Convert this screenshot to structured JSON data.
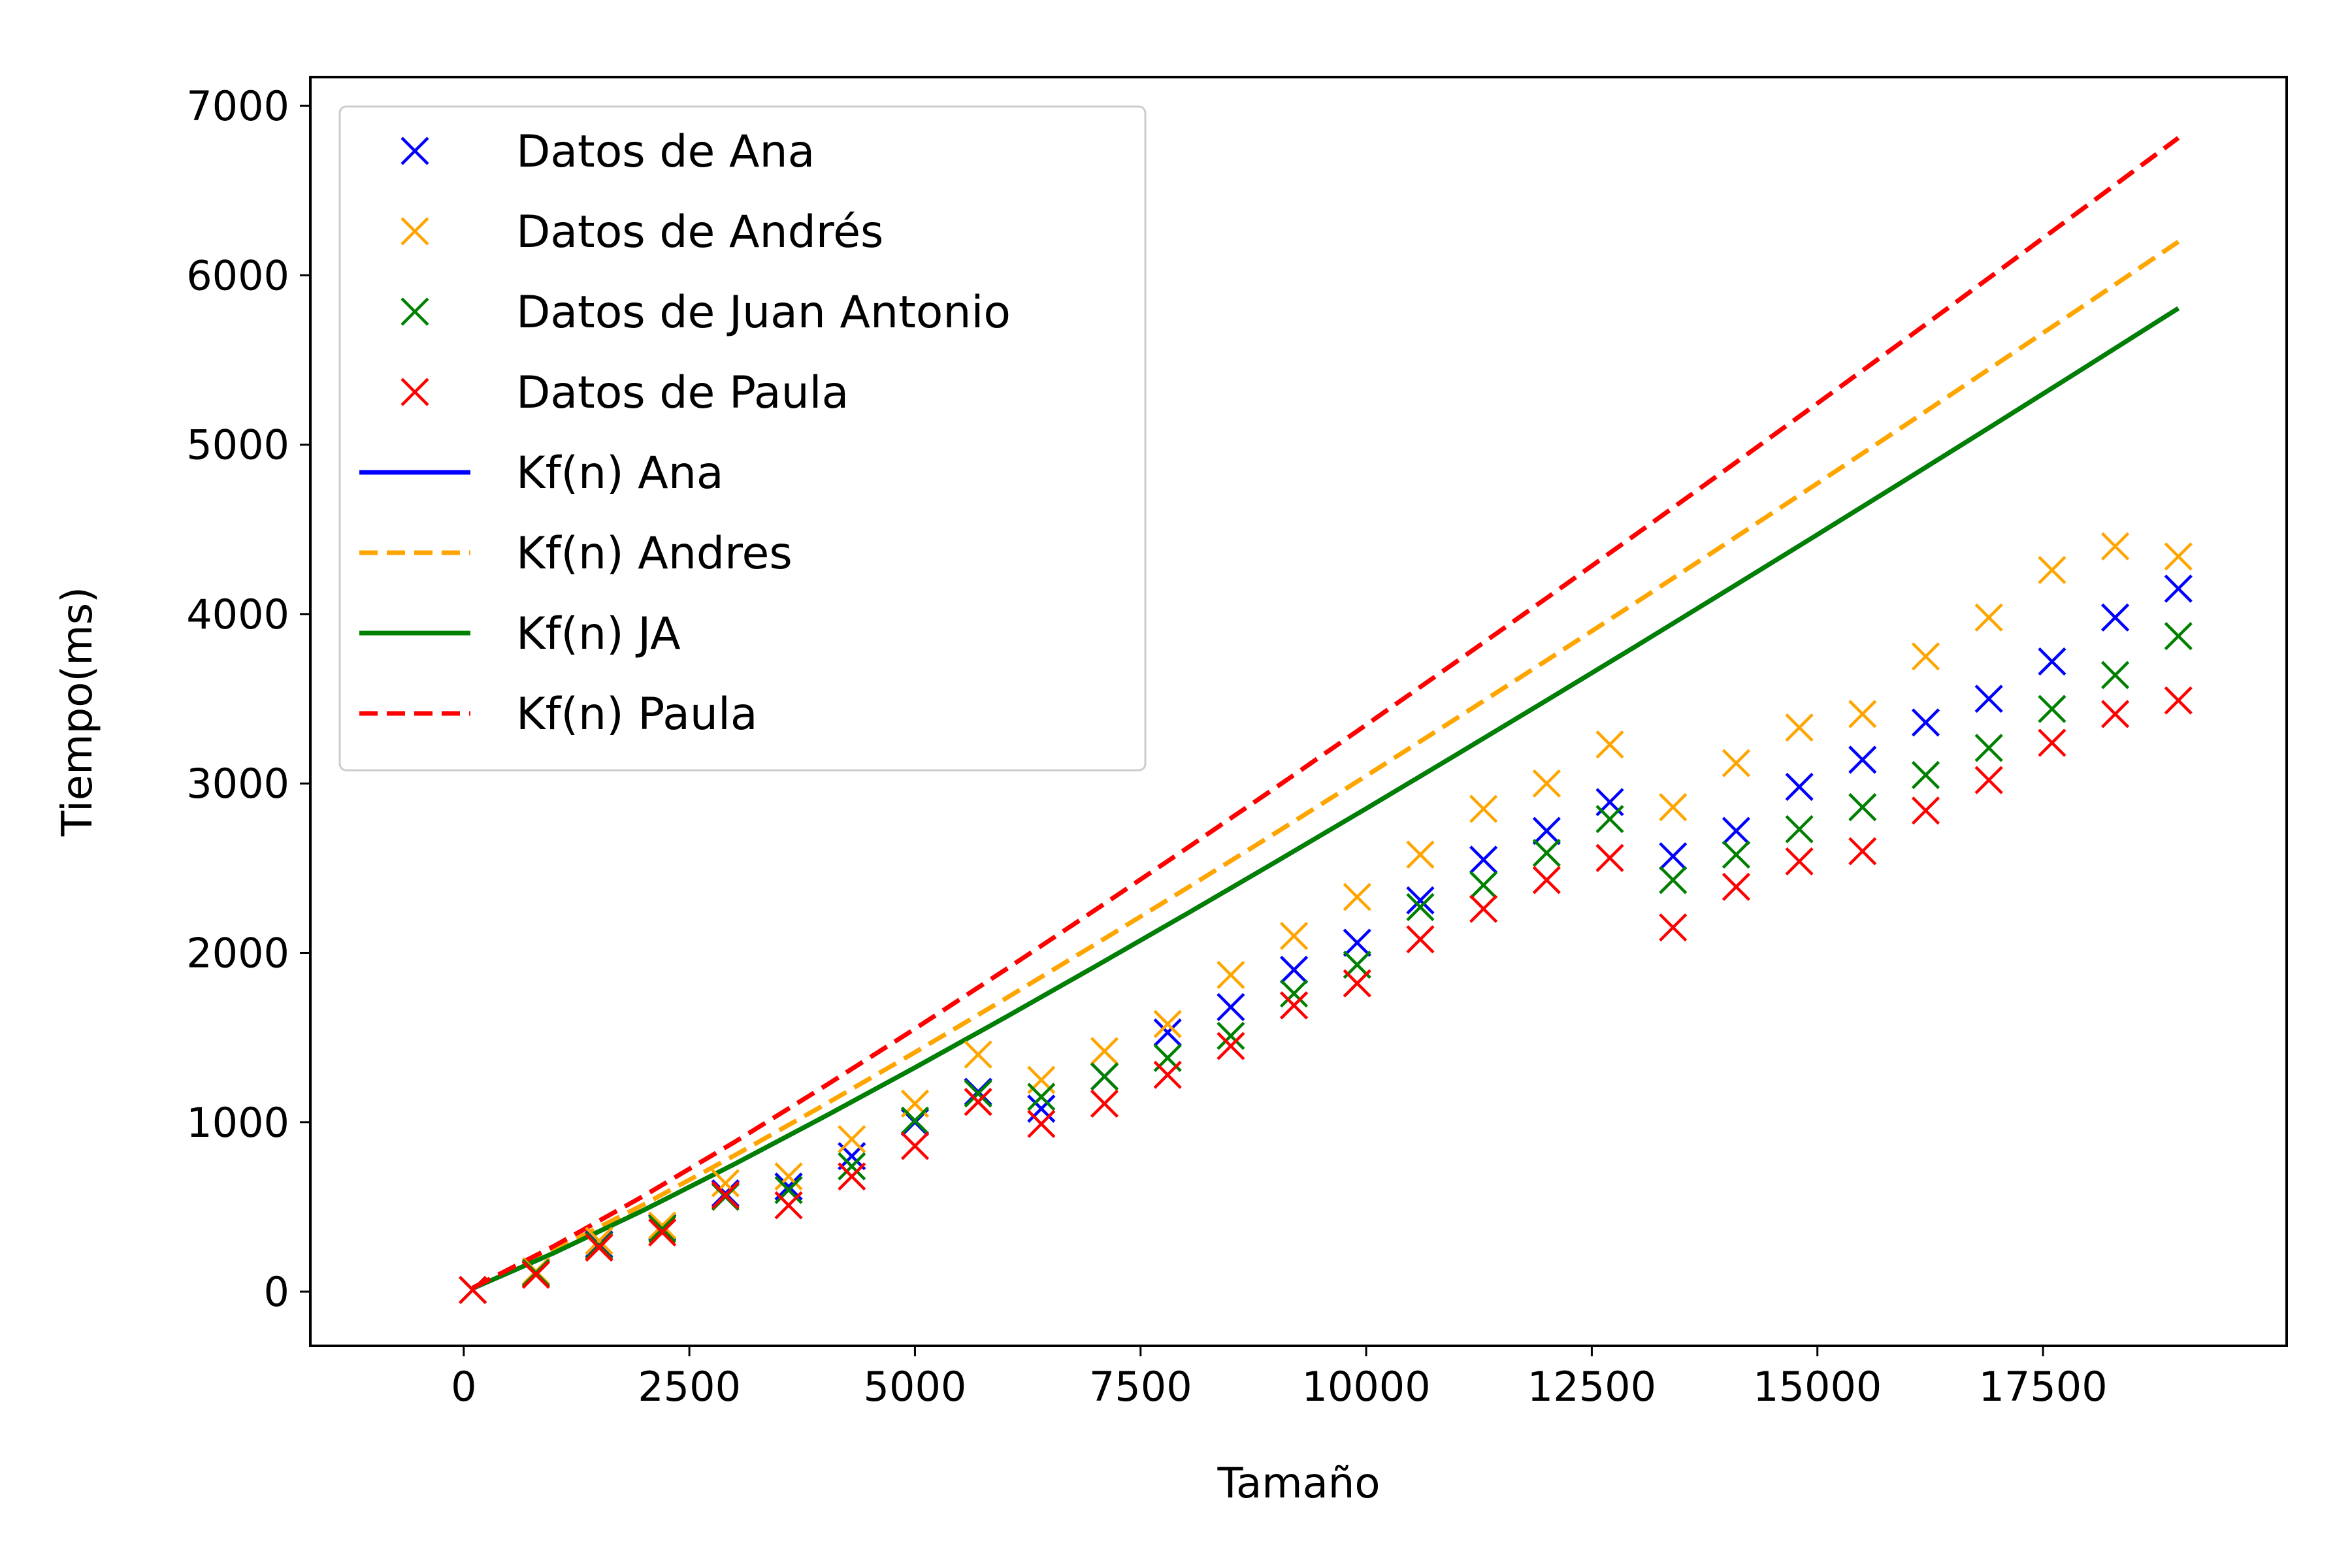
{
  "chart_data": {
    "type": "scatter",
    "title": "",
    "xlabel": "Tamaño",
    "ylabel": "Tiempo(ms)",
    "xlim": [
      -1700,
      20200
    ],
    "ylim": [
      -320,
      7170
    ],
    "x_ticks": [
      0,
      2500,
      5000,
      7500,
      10000,
      12500,
      15000,
      17500
    ],
    "x_tick_labels": [
      "0",
      "2500",
      "5000",
      "7500",
      "10000",
      "12500",
      "15000",
      "17500"
    ],
    "y_ticks": [
      0,
      1000,
      2000,
      3000,
      4000,
      5000,
      6000,
      7000
    ],
    "y_tick_labels": [
      "0",
      "1000",
      "2000",
      "3000",
      "4000",
      "5000",
      "6000",
      "7000"
    ],
    "grid": false,
    "legend_position": "top-left",
    "x": [
      100,
      800,
      1500,
      2200,
      2900,
      3600,
      4300,
      5000,
      5700,
      6400,
      7100,
      7800,
      8500,
      9200,
      9900,
      10600,
      11300,
      12000,
      12700,
      13400,
      14100,
      14800,
      15500,
      16200,
      16900,
      17600,
      18300,
      19000
    ],
    "series": [
      {
        "name": "Datos de Ana",
        "kind": "markers",
        "marker": "x",
        "color": "#0000ff",
        "values": [
          10,
          110,
          280,
          380,
          580,
          620,
          800,
          1000,
          1180,
          1080,
          1270,
          1530,
          1680,
          1900,
          2060,
          2310,
          2550,
          2720,
          2890,
          2570,
          2720,
          2980,
          3140,
          3360,
          3500,
          3720,
          3980,
          4150
        ]
      },
      {
        "name": "Datos de Andrés",
        "kind": "markers",
        "marker": "x",
        "color": "#ffa500",
        "values": [
          10,
          120,
          300,
          390,
          640,
          680,
          900,
          1110,
          1400,
          1250,
          1420,
          1580,
          1870,
          2100,
          2330,
          2580,
          2850,
          3000,
          3230,
          2860,
          3120,
          3330,
          3410,
          3750,
          3980,
          4260,
          4400,
          4340
        ]
      },
      {
        "name": "Datos de Juan Antonio",
        "kind": "markers",
        "marker": "x",
        "color": "#008000",
        "values": [
          10,
          110,
          270,
          370,
          560,
          600,
          740,
          1010,
          1170,
          1150,
          1270,
          1380,
          1510,
          1760,
          1930,
          2270,
          2400,
          2590,
          2790,
          2430,
          2580,
          2730,
          2860,
          3050,
          3210,
          3440,
          3640,
          3870
        ]
      },
      {
        "name": "Datos de Paula",
        "kind": "markers",
        "marker": "x",
        "color": "#ff0000",
        "values": [
          10,
          100,
          260,
          350,
          570,
          510,
          680,
          860,
          1120,
          990,
          1110,
          1280,
          1450,
          1690,
          1820,
          2080,
          2260,
          2430,
          2560,
          2150,
          2390,
          2540,
          2600,
          2840,
          3020,
          3240,
          3410,
          3490
        ]
      },
      {
        "name": "Kf(n) Ana",
        "kind": "line",
        "dash": "solid",
        "color": "#0000ff",
        "x": [
          100,
          1000,
          2000,
          3000,
          4000,
          5000,
          6000,
          7000,
          8000,
          9000,
          10000,
          11000,
          12000,
          13000,
          14000,
          15000,
          16000,
          17000,
          18000,
          19000
        ],
        "values": [
          19,
          229,
          483,
          753,
          1034,
          1323,
          1619,
          1921,
          2227,
          2538,
          2852,
          3170,
          3491,
          3814,
          4141,
          4469,
          4800,
          5133,
          5468,
          5805
        ]
      },
      {
        "name": "Kf(n) Andres",
        "kind": "line",
        "dash": "dashed",
        "color": "#ffa500",
        "x": [
          100,
          1000,
          2000,
          3000,
          4000,
          5000,
          6000,
          7000,
          8000,
          9000,
          10000,
          11000,
          12000,
          13000,
          14000,
          15000,
          16000,
          17000,
          18000,
          19000
        ],
        "values": [
          21,
          245,
          516,
          804,
          1104,
          1413,
          1729,
          2051,
          2378,
          2709,
          3045,
          3384,
          3727,
          4072,
          4421,
          4772,
          5125,
          5481,
          5838,
          6198
        ]
      },
      {
        "name": "Kf(n) JA",
        "kind": "line",
        "dash": "solid",
        "color": "#008000",
        "x": [
          100,
          1000,
          2000,
          3000,
          4000,
          5000,
          6000,
          7000,
          8000,
          9000,
          10000,
          11000,
          12000,
          13000,
          14000,
          15000,
          16000,
          17000,
          18000,
          19000
        ],
        "values": [
          19,
          229,
          483,
          753,
          1034,
          1323,
          1619,
          1921,
          2227,
          2538,
          2852,
          3170,
          3491,
          3814,
          4141,
          4469,
          4800,
          5133,
          5468,
          5805
        ]
      },
      {
        "name": "Kf(n) Paula",
        "kind": "line",
        "dash": "dashed",
        "color": "#ff0000",
        "x": [
          100,
          1000,
          2000,
          3000,
          4000,
          5000,
          6000,
          7000,
          8000,
          9000,
          10000,
          11000,
          12000,
          13000,
          14000,
          15000,
          16000,
          17000,
          18000,
          19000
        ],
        "values": [
          23,
          269,
          567,
          883,
          1213,
          1552,
          1900,
          2254,
          2613,
          2977,
          3346,
          3719,
          4095,
          4475,
          4858,
          5244,
          5632,
          6023,
          6416,
          6811
        ]
      }
    ]
  }
}
